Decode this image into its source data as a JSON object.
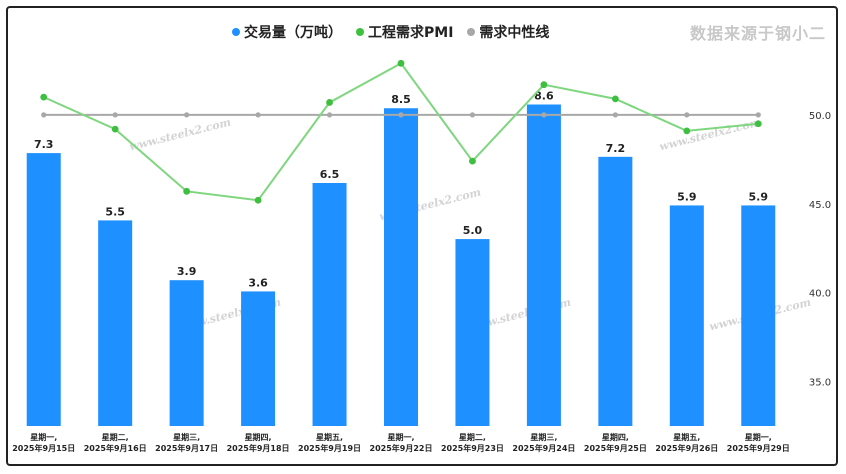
{
  "legend": {
    "volume": "交易量（万吨）",
    "pmi": "工程需求PMI",
    "neutral": "需求中性线"
  },
  "source": "数据来源于钢小二",
  "watermark": "www.steelx2.com",
  "colors": {
    "bar": "#1e90ff",
    "pmi_line": "#7ed67e",
    "pmi_dot": "#3fbf3f",
    "neutral": "#a8a8a8"
  },
  "chart_data": {
    "type": "bar+line",
    "categories": [
      [
        "星期一,",
        "2025年9月15日"
      ],
      [
        "星期二,",
        "2025年9月16日"
      ],
      [
        "星期三,",
        "2025年9月17日"
      ],
      [
        "星期四,",
        "2025年9月18日"
      ],
      [
        "星期五,",
        "2025年9月19日"
      ],
      [
        "星期一,",
        "2025年9月22日"
      ],
      [
        "星期二,",
        "2025年9月23日"
      ],
      [
        "星期三,",
        "2025年9月24日"
      ],
      [
        "星期四,",
        "2025年9月25日"
      ],
      [
        "星期五,",
        "2025年9月26日"
      ],
      [
        "星期一,",
        "2025年9月29日"
      ]
    ],
    "series": [
      {
        "name": "交易量（万吨）",
        "type": "bar",
        "values": [
          7.3,
          5.5,
          3.9,
          3.6,
          6.5,
          8.5,
          5.0,
          8.6,
          7.2,
          5.9,
          5.9
        ],
        "labels": [
          "7.3",
          "5.5",
          "3.9",
          "3.6",
          "6.5",
          "8.5",
          "5.0",
          "8.6",
          "7.2",
          "5.9",
          "5.9"
        ]
      },
      {
        "name": "工程需求PMI",
        "type": "line",
        "values": [
          51.0,
          49.2,
          45.7,
          45.2,
          50.7,
          52.9,
          47.4,
          51.7,
          50.9,
          49.1,
          49.5
        ]
      },
      {
        "name": "需求中性线",
        "type": "line",
        "values": [
          50,
          50,
          50,
          50,
          50,
          50,
          50,
          50,
          50,
          50,
          50
        ]
      }
    ],
    "right_axis": {
      "ticks": [
        "35.0",
        "40.0",
        "45.0",
        "50.0"
      ],
      "values": [
        35,
        40,
        45,
        50
      ],
      "ylim": [
        32.5,
        55
      ]
    },
    "left_axis": {
      "ylim": [
        0,
        10.7
      ]
    }
  }
}
